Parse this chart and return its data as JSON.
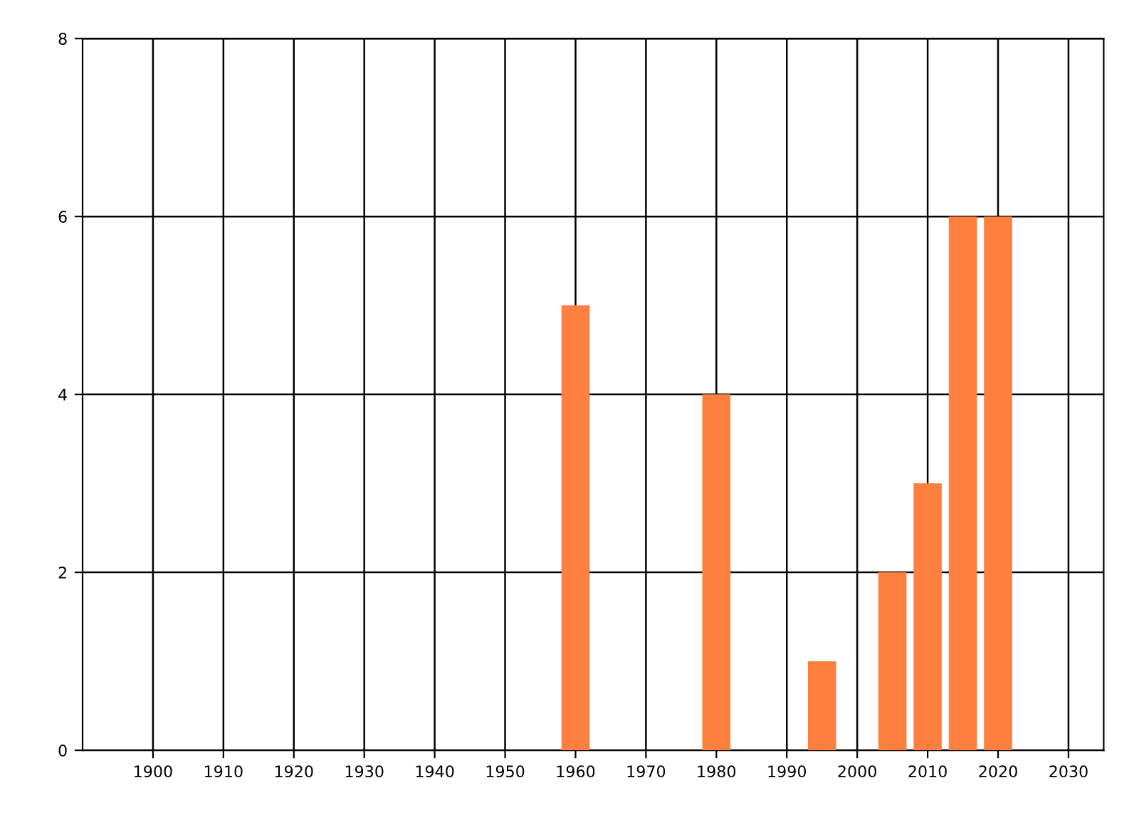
{
  "chart_data": {
    "type": "bar",
    "x": [
      1960,
      1980,
      1995,
      2005,
      2010,
      2015,
      2020
    ],
    "values": [
      5,
      4,
      1,
      2,
      3,
      6,
      6
    ],
    "color": "#ff7f3f",
    "xlim": [
      1890,
      2035
    ],
    "xticks": [
      1900,
      1910,
      1920,
      1930,
      1940,
      1950,
      1960,
      1970,
      1980,
      1990,
      2000,
      2010,
      2020,
      2030
    ],
    "ylim": [
      0,
      8
    ],
    "yticks": [
      0,
      2,
      4,
      6,
      8
    ],
    "grid": true
  }
}
